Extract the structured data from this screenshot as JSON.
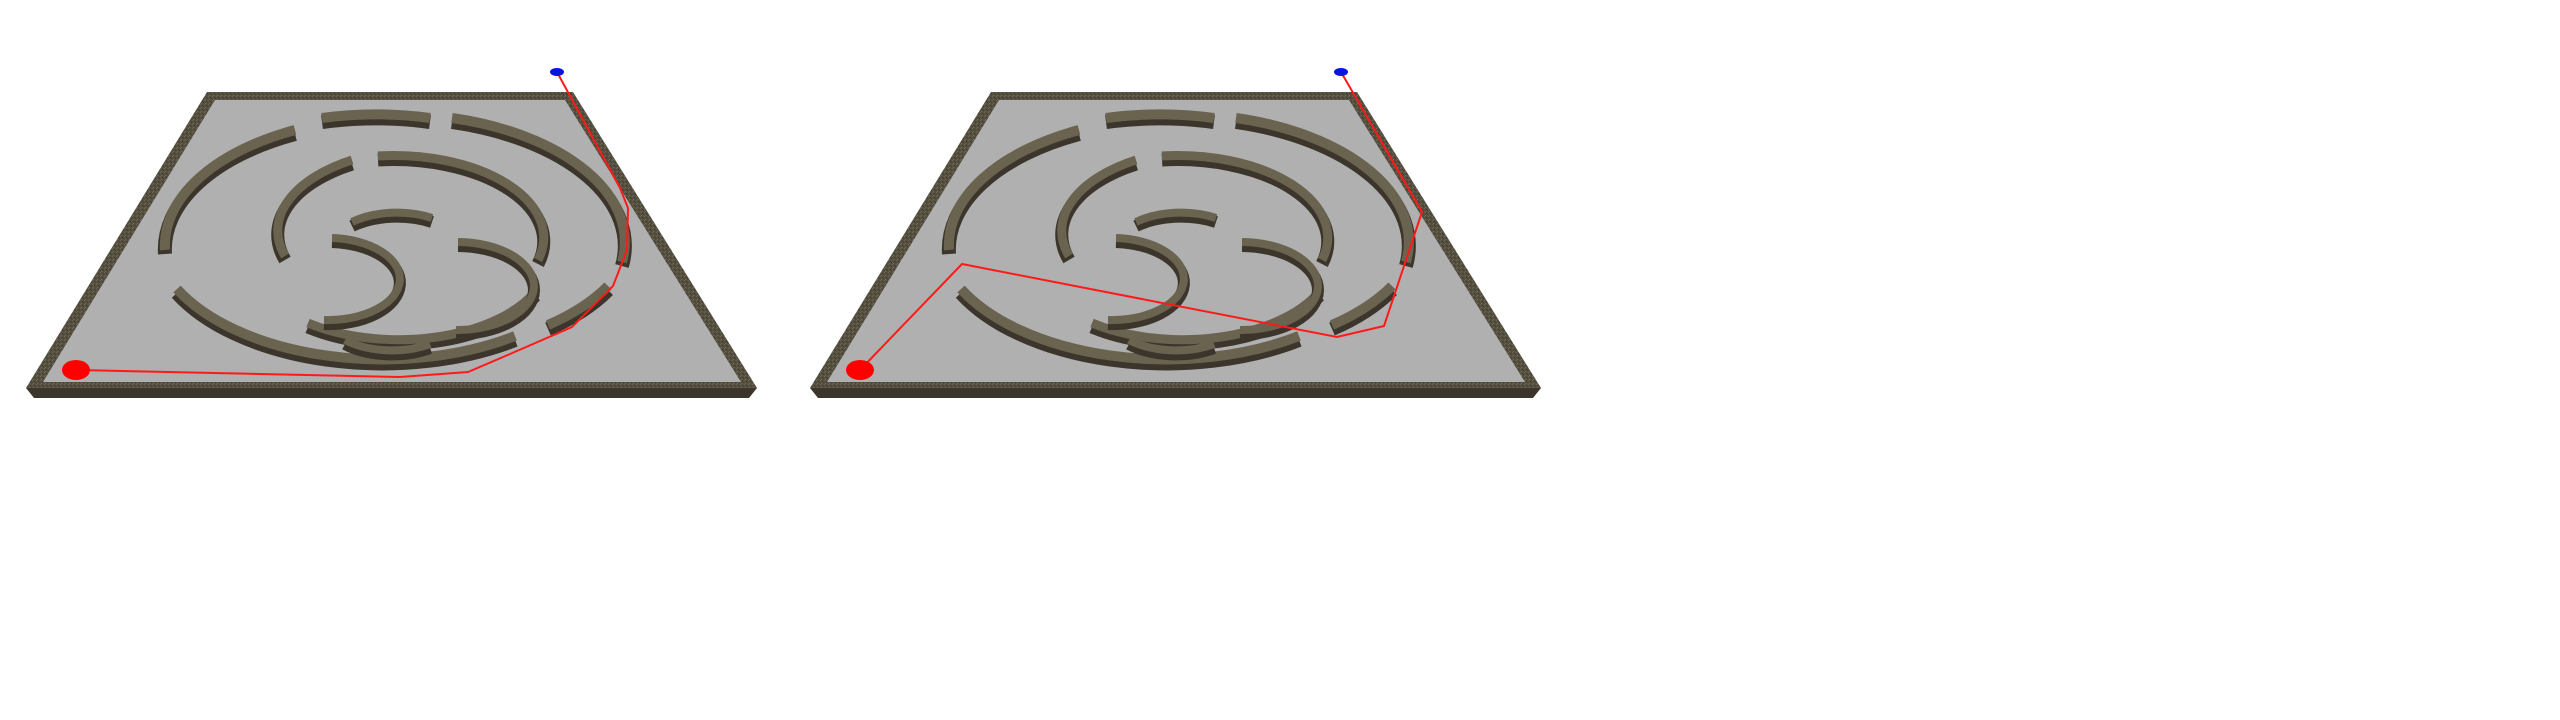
{
  "colors": {
    "background": "#ffffff",
    "floor": "#b0b0b0",
    "wall_top": "#5a5346",
    "wall_side": "#3b352b",
    "path": "#ff1a1a",
    "start_marker": "#ff0000",
    "goal_marker": "#0a14e0"
  },
  "panels": [
    {
      "name": "maze-panel-left",
      "path_style": "hugs-outer-ring-on-right-side"
    },
    {
      "name": "maze-panel-right",
      "path_style": "cuts-through-ring-gaps"
    }
  ],
  "icons": {
    "start": "red-start-disc",
    "goal": "blue-goal-disc"
  }
}
